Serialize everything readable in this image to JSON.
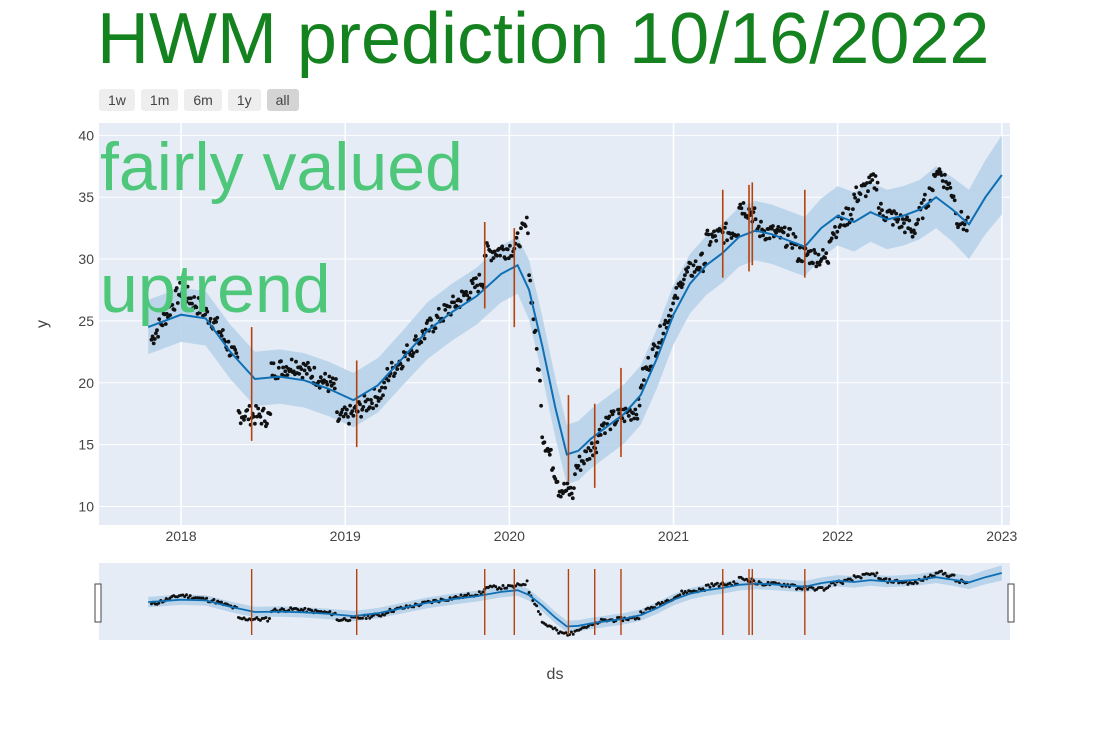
{
  "title": "HWM prediction 10/16/2022",
  "range_selector": {
    "buttons": [
      "1w",
      "1m",
      "6m",
      "1y",
      "all"
    ],
    "active": "all"
  },
  "colors": {
    "title": "#13821f",
    "annotation": "#4ec77b",
    "forecast": "#0f6fb4",
    "band": "#b8d3ea",
    "observed": "#111111",
    "changepoint": "#b5410d",
    "plot_bg": "#e5ecf6"
  },
  "chart_data": {
    "type": "line",
    "title": "HWM prediction 10/16/2022",
    "xlabel": "ds",
    "ylabel": "y",
    "xlim": [
      2017.5,
      2023.05
    ],
    "ylim": [
      8.5,
      41
    ],
    "xticks": [
      "2018",
      "2019",
      "2020",
      "2021",
      "2022",
      "2023"
    ],
    "yticks": [
      10,
      15,
      20,
      25,
      30,
      35,
      40
    ],
    "grid": true,
    "annotations": [
      "fairly valued",
      "uptrend"
    ],
    "forecast": {
      "x": [
        2017.8,
        2018.0,
        2018.15,
        2018.3,
        2018.45,
        2018.6,
        2018.75,
        2018.9,
        2019.05,
        2019.2,
        2019.35,
        2019.5,
        2019.65,
        2019.8,
        2019.95,
        2020.05,
        2020.12,
        2020.2,
        2020.28,
        2020.35,
        2020.42,
        2020.5,
        2020.6,
        2020.7,
        2020.8,
        2020.9,
        2021.0,
        2021.1,
        2021.2,
        2021.3,
        2021.4,
        2021.5,
        2021.6,
        2021.7,
        2021.8,
        2021.9,
        2022.0,
        2022.1,
        2022.2,
        2022.3,
        2022.4,
        2022.5,
        2022.6,
        2022.7,
        2022.8,
        2022.9,
        2023.0
      ],
      "y": [
        24.5,
        25.5,
        25.2,
        22.5,
        20.3,
        20.5,
        20.2,
        19.5,
        18.6,
        19.8,
        22.0,
        24.2,
        25.7,
        27.0,
        28.8,
        29.5,
        27.5,
        23.0,
        18.0,
        14.2,
        14.5,
        15.5,
        16.5,
        17.5,
        19.0,
        22.0,
        25.5,
        28.0,
        29.5,
        30.5,
        31.8,
        32.3,
        32.0,
        31.5,
        31.0,
        32.5,
        33.5,
        33.0,
        33.8,
        33.2,
        33.5,
        34.0,
        35.0,
        34.0,
        32.8,
        35.0,
        36.8
      ]
    },
    "band_width": [
      2.2,
      2.2,
      2.2,
      2.2,
      2.2,
      2.2,
      2.2,
      2.2,
      2.2,
      2.2,
      2.2,
      2.3,
      2.3,
      2.3,
      2.3,
      2.3,
      2.4,
      2.4,
      2.4,
      2.4,
      2.4,
      2.4,
      2.4,
      2.4,
      2.4,
      2.4,
      2.4,
      2.4,
      2.4,
      2.4,
      2.4,
      2.4,
      2.4,
      2.4,
      2.4,
      2.4,
      2.4,
      2.4,
      2.4,
      2.4,
      2.4,
      2.4,
      2.5,
      2.6,
      2.8,
      3.0,
      3.2
    ],
    "observed_segments": [
      {
        "x0": 2017.82,
        "x1": 2018.0,
        "y0": 23.5,
        "y1": 27.5
      },
      {
        "x0": 2018.0,
        "x1": 2018.2,
        "y0": 27.5,
        "y1": 25.0
      },
      {
        "x0": 2018.2,
        "x1": 2018.35,
        "y0": 25.0,
        "y1": 21.5
      },
      {
        "x0": 2018.35,
        "x1": 2018.55,
        "y0": 17.5,
        "y1": 17.2
      },
      {
        "x0": 2018.55,
        "x1": 2018.7,
        "y0": 21.0,
        "y1": 21.5
      },
      {
        "x0": 2018.7,
        "x1": 2018.95,
        "y0": 21.5,
        "y1": 19.5
      },
      {
        "x0": 2018.95,
        "x1": 2019.05,
        "y0": 17.0,
        "y1": 17.5
      },
      {
        "x0": 2019.05,
        "x1": 2019.25,
        "y0": 17.5,
        "y1": 19.5
      },
      {
        "x0": 2019.25,
        "x1": 2019.55,
        "y0": 20.5,
        "y1": 25.0
      },
      {
        "x0": 2019.55,
        "x1": 2019.85,
        "y0": 25.0,
        "y1": 28.5
      },
      {
        "x0": 2019.85,
        "x1": 2020.05,
        "y0": 30.5,
        "y1": 31.0
      },
      {
        "x0": 2020.05,
        "x1": 2020.12,
        "y0": 31.5,
        "y1": 33.0
      },
      {
        "x0": 2020.12,
        "x1": 2020.2,
        "y0": 29.0,
        "y1": 18.0
      },
      {
        "x0": 2020.2,
        "x1": 2020.3,
        "y0": 16.0,
        "y1": 12.0
      },
      {
        "x0": 2020.3,
        "x1": 2020.4,
        "y0": 11.5,
        "y1": 11.0
      },
      {
        "x0": 2020.4,
        "x1": 2020.55,
        "y0": 13.0,
        "y1": 15.5
      },
      {
        "x0": 2020.55,
        "x1": 2020.8,
        "y0": 16.5,
        "y1": 18.0
      },
      {
        "x0": 2020.8,
        "x1": 2021.05,
        "y0": 20.0,
        "y1": 28.0
      },
      {
        "x0": 2021.05,
        "x1": 2021.2,
        "y0": 28.5,
        "y1": 30.0
      },
      {
        "x0": 2021.2,
        "x1": 2021.4,
        "y0": 31.5,
        "y1": 32.5
      },
      {
        "x0": 2021.4,
        "x1": 2021.5,
        "y0": 34.5,
        "y1": 33.5
      },
      {
        "x0": 2021.5,
        "x1": 2021.75,
        "y0": 32.5,
        "y1": 31.5
      },
      {
        "x0": 2021.75,
        "x1": 2021.95,
        "y0": 30.5,
        "y1": 30.0
      },
      {
        "x0": 2021.95,
        "x1": 2022.1,
        "y0": 32.0,
        "y1": 34.0
      },
      {
        "x0": 2022.1,
        "x1": 2022.25,
        "y0": 35.0,
        "y1": 36.5
      },
      {
        "x0": 2022.25,
        "x1": 2022.45,
        "y0": 34.0,
        "y1": 32.5
      },
      {
        "x0": 2022.45,
        "x1": 2022.6,
        "y0": 32.0,
        "y1": 36.5
      },
      {
        "x0": 2022.6,
        "x1": 2022.72,
        "y0": 37.5,
        "y1": 35.0
      },
      {
        "x0": 2022.72,
        "x1": 2022.8,
        "y0": 33.5,
        "y1": 32.5
      }
    ],
    "changepoints": [
      {
        "x": 2018.43,
        "y0": 15.3,
        "y1": 24.5
      },
      {
        "x": 2019.07,
        "y0": 14.8,
        "y1": 21.8
      },
      {
        "x": 2019.85,
        "y0": 26.0,
        "y1": 33.0
      },
      {
        "x": 2020.03,
        "y0": 24.5,
        "y1": 32.5
      },
      {
        "x": 2020.36,
        "y0": 12.0,
        "y1": 19.0
      },
      {
        "x": 2020.52,
        "y0": 11.5,
        "y1": 18.3
      },
      {
        "x": 2020.68,
        "y0": 14.0,
        "y1": 21.2
      },
      {
        "x": 2021.3,
        "y0": 28.5,
        "y1": 35.6
      },
      {
        "x": 2021.46,
        "y0": 29.0,
        "y1": 36.0
      },
      {
        "x": 2021.48,
        "y0": 29.5,
        "y1": 36.2
      },
      {
        "x": 2021.8,
        "y0": 28.5,
        "y1": 35.6
      }
    ]
  }
}
